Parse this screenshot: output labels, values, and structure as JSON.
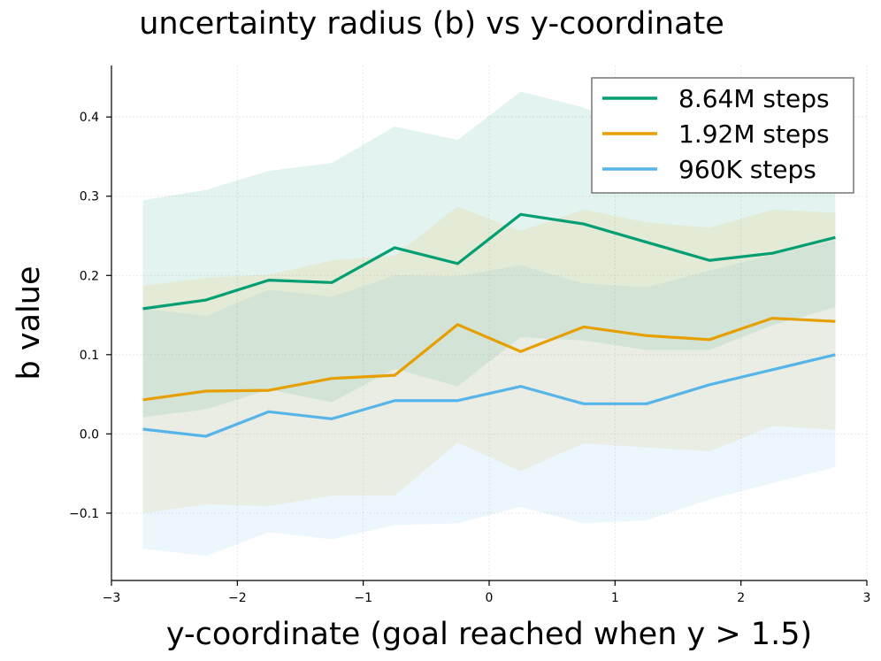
{
  "chart_data": {
    "type": "line",
    "title": "uncertainty radius (b) vs y-coordinate",
    "xlabel": "y-coordinate (goal reached when y > 1.5)",
    "ylabel": "b value",
    "xlim": [
      -3,
      3
    ],
    "ylim": [
      -0.185,
      0.465
    ],
    "xticks": [
      -3,
      -2,
      -1,
      0,
      1,
      2,
      3
    ],
    "xtick_labels": [
      "−3",
      "−2",
      "−1",
      "0",
      "1",
      "2",
      "3"
    ],
    "yticks": [
      -0.1,
      0.0,
      0.1,
      0.2,
      0.3,
      0.4
    ],
    "ytick_labels": [
      "−0.1",
      "0.0",
      "0.1",
      "0.2",
      "0.3",
      "0.4"
    ],
    "grid": true,
    "legend_position": "top-right",
    "x": [
      -2.75,
      -2.25,
      -1.75,
      -1.25,
      -0.75,
      -0.25,
      0.25,
      0.75,
      1.25,
      1.75,
      2.25,
      2.75
    ],
    "series": [
      {
        "name": "8.64M steps",
        "color": "#009e73",
        "values": [
          0.158,
          0.169,
          0.194,
          0.191,
          0.235,
          0.215,
          0.277,
          0.265,
          0.242,
          0.219,
          0.228,
          0.248
        ],
        "lower": [
          0.021,
          0.031,
          0.056,
          0.04,
          0.082,
          0.06,
          0.122,
          0.118,
          0.106,
          0.106,
          0.137,
          0.16
        ],
        "upper": [
          0.295,
          0.308,
          0.332,
          0.342,
          0.388,
          0.371,
          0.432,
          0.412,
          0.378,
          0.332,
          0.319,
          0.336
        ]
      },
      {
        "name": "1.92M steps",
        "color": "#e69f00",
        "values": [
          0.043,
          0.054,
          0.055,
          0.07,
          0.074,
          0.138,
          0.104,
          0.135,
          0.124,
          0.119,
          0.146,
          0.142
        ],
        "lower": [
          -0.1,
          -0.089,
          -0.091,
          -0.078,
          -0.078,
          -0.011,
          -0.047,
          -0.012,
          -0.017,
          -0.022,
          0.01,
          0.005
        ],
        "upper": [
          0.187,
          0.197,
          0.201,
          0.219,
          0.225,
          0.287,
          0.256,
          0.283,
          0.267,
          0.26,
          0.283,
          0.279
        ]
      },
      {
        "name": "960K steps",
        "color": "#56b4e9",
        "values": [
          0.006,
          -0.003,
          0.028,
          0.019,
          0.042,
          0.042,
          0.06,
          0.038,
          0.038,
          0.062,
          0.081,
          0.1
        ],
        "lower": [
          -0.145,
          -0.154,
          -0.124,
          -0.133,
          -0.115,
          -0.113,
          -0.092,
          -0.113,
          -0.109,
          -0.083,
          -0.062,
          -0.042
        ],
        "upper": [
          0.158,
          0.149,
          0.182,
          0.173,
          0.2,
          0.199,
          0.213,
          0.19,
          0.185,
          0.206,
          0.226,
          0.244
        ]
      }
    ]
  }
}
